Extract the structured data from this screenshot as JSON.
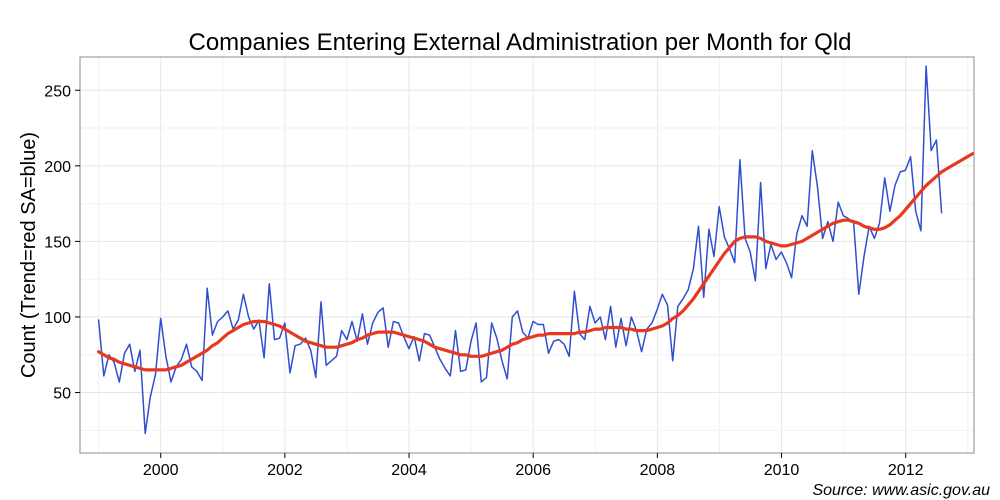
{
  "chart_data": {
    "type": "line",
    "title": "Companies Entering External Administration per Month for Qld",
    "xlabel": "",
    "ylabel": "Count (Trend=red SA=blue)",
    "source": "Source: www.asic.gov.au",
    "xlim": [
      1998.7,
      2013.1
    ],
    "ylim": [
      10,
      272
    ],
    "x_ticks": [
      2000,
      2002,
      2004,
      2006,
      2008,
      2010,
      2012
    ],
    "y_ticks": [
      50,
      100,
      150,
      200,
      250
    ],
    "grid": true,
    "legend": "none",
    "x_start": 1999.0,
    "x_step": 0.0833,
    "series": [
      {
        "color": "#2f4fd0",
        "values": [
          98,
          61,
          75,
          70,
          57,
          76,
          82,
          64,
          78,
          23,
          47,
          62,
          99,
          74,
          57,
          67,
          72,
          82,
          67,
          64,
          58,
          119,
          88,
          97,
          100,
          104,
          92,
          98,
          115,
          100,
          92,
          98,
          73,
          122,
          85,
          86,
          96,
          63,
          81,
          82,
          86,
          78,
          60,
          110,
          68,
          71,
          74,
          91,
          85,
          97,
          84,
          102,
          82,
          96,
          103,
          106,
          80,
          97,
          96,
          87,
          79,
          87,
          71,
          89,
          88,
          80,
          72,
          66,
          61,
          91,
          64,
          65,
          84,
          96,
          57,
          60,
          96,
          86,
          71,
          59,
          100,
          104,
          90,
          86,
          97,
          95,
          95,
          76,
          84,
          85,
          82,
          74,
          117,
          89,
          85,
          107,
          96,
          100,
          85,
          107,
          80,
          99,
          81,
          100,
          91,
          77,
          92,
          96,
          105,
          115,
          108,
          71,
          107,
          112,
          118,
          132,
          160,
          113,
          158,
          140,
          173,
          153,
          145,
          136,
          204,
          152,
          143,
          124,
          189,
          132,
          148,
          138,
          143,
          136,
          126,
          155,
          167,
          160,
          210,
          186,
          152,
          163,
          150,
          176,
          167,
          165,
          162,
          115,
          140,
          160,
          152,
          162,
          192,
          170,
          187,
          196,
          197,
          206,
          170,
          157,
          266,
          210,
          217,
          169
        ]
      },
      {
        "color": "#e8391f",
        "values": [
          77,
          75,
          73,
          72,
          70,
          69,
          68,
          67,
          66,
          65,
          65,
          65,
          65,
          65,
          66,
          67,
          68,
          70,
          72,
          74,
          76,
          78,
          81,
          83,
          86,
          89,
          91,
          93,
          95,
          96,
          97,
          97,
          97,
          96,
          95,
          94,
          92,
          90,
          88,
          86,
          84,
          83,
          82,
          81,
          80,
          80,
          80,
          81,
          82,
          83,
          85,
          86,
          88,
          89,
          90,
          90,
          90,
          90,
          89,
          88,
          87,
          86,
          85,
          84,
          82,
          80,
          79,
          78,
          77,
          76,
          75,
          75,
          74,
          74,
          74,
          75,
          76,
          77,
          78,
          80,
          82,
          83,
          85,
          86,
          87,
          88,
          88,
          89,
          89,
          89,
          89,
          89,
          89,
          90,
          90,
          91,
          92,
          92,
          93,
          93,
          93,
          93,
          92,
          92,
          91,
          91,
          91,
          92,
          93,
          94,
          96,
          99,
          101,
          104,
          108,
          112,
          117,
          122,
          127,
          132,
          137,
          142,
          146,
          150,
          152,
          153,
          153,
          153,
          152,
          150,
          149,
          148,
          147,
          147,
          148,
          149,
          150,
          152,
          154,
          156,
          158,
          160,
          162,
          163,
          164,
          164,
          163,
          162,
          160,
          159,
          158,
          158,
          159,
          161,
          164,
          167,
          171,
          175,
          179,
          183,
          187,
          190,
          193,
          196,
          198,
          200,
          202,
          204,
          206,
          208
        ]
      }
    ]
  }
}
